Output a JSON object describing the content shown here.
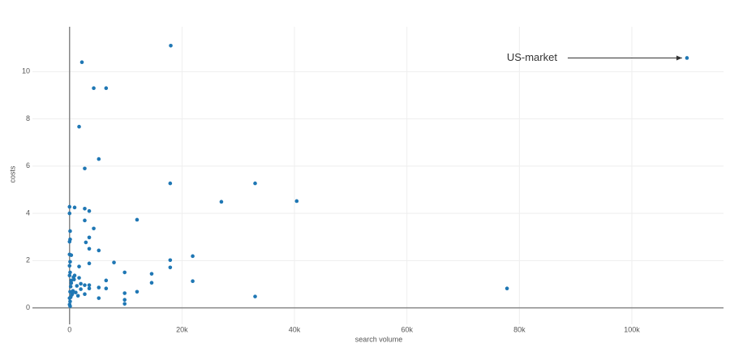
{
  "chart_data": {
    "type": "scatter",
    "x_label": "search volume",
    "y_label": "costs",
    "color": "#1f77b4",
    "grid": true,
    "xlim": [
      -6600,
      116300
    ],
    "ylim": [
      -0.7,
      11.9
    ],
    "xticks": [
      0,
      {
        "value": 20000,
        "label": "20k"
      },
      {
        "value": 40000,
        "label": "40k"
      },
      {
        "value": 60000,
        "label": "60k"
      },
      {
        "value": 80000,
        "label": "80k"
      },
      {
        "value": 100000,
        "label": "100k"
      }
    ],
    "yticks": [
      0,
      2,
      4,
      6,
      8,
      10
    ],
    "annotation": "US-market",
    "x": [
      18000,
      2200,
      4300,
      6500,
      1700,
      5200,
      2700,
      17900,
      33000,
      27000,
      40400,
      0,
      900,
      2700,
      3500,
      0,
      12000,
      2700,
      4300,
      100,
      3500,
      100,
      0,
      2900,
      3500,
      5200,
      0,
      300,
      21900,
      17900,
      100,
      7900,
      3500,
      0,
      1700,
      17900,
      9800,
      100,
      14600,
      900,
      0,
      1700,
      6500,
      300,
      21900,
      14600,
      2000,
      2700,
      3500,
      1300,
      5200,
      6500,
      77800,
      2000,
      3500,
      100,
      12000,
      9800,
      1500,
      2700,
      33000,
      5200,
      9800,
      9800,
      0,
      100,
      0,
      100,
      400,
      600,
      200,
      800,
      300,
      500,
      1100,
      200,
      700,
      109800
    ],
    "y": [
      11.1,
      10.4,
      9.3,
      9.3,
      7.67,
      6.3,
      5.9,
      5.27,
      5.27,
      4.49,
      4.52,
      4.28,
      4.25,
      4.2,
      4.1,
      4.0,
      3.73,
      3.7,
      3.36,
      3.25,
      2.98,
      2.9,
      2.8,
      2.77,
      2.5,
      2.43,
      2.26,
      2.23,
      2.19,
      2.02,
      1.95,
      1.92,
      1.88,
      1.78,
      1.75,
      1.71,
      1.5,
      1.5,
      1.44,
      1.37,
      1.37,
      1.27,
      1.16,
      1.16,
      1.13,
      1.06,
      1.02,
      0.96,
      0.96,
      0.93,
      0.86,
      0.82,
      0.82,
      0.79,
      0.82,
      0.68,
      0.68,
      0.62,
      0.51,
      0.58,
      0.48,
      0.41,
      0.34,
      0.17,
      0.41,
      0.27,
      0.14,
      0.07,
      0.55,
      0.72,
      0.9,
      1.2,
      1.05,
      0.6,
      0.65,
      0.45,
      1.3,
      10.58
    ]
  }
}
